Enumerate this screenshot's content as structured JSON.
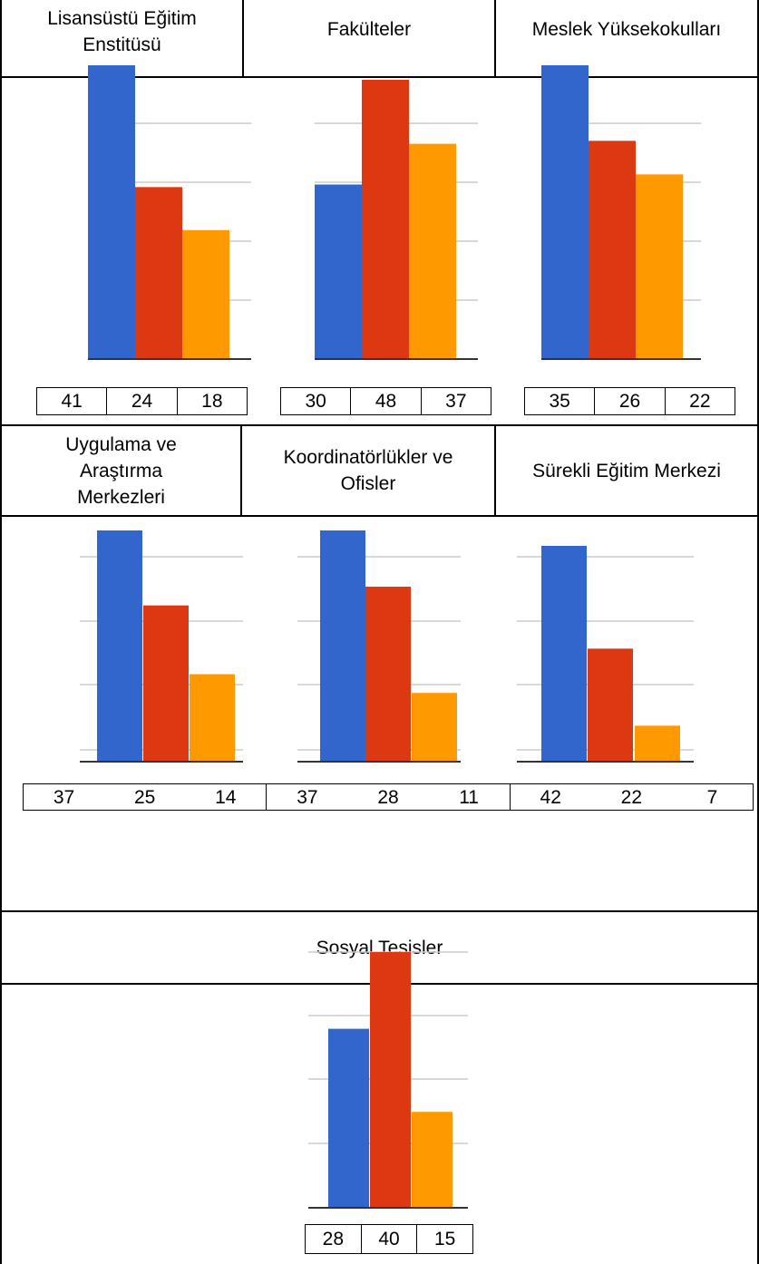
{
  "colors": {
    "series_1": "#3366CC",
    "series_2": "#DC3912",
    "series_3": "#FF9900",
    "gridline": "#CCCCCC",
    "baseline": "#333333"
  },
  "headers": {
    "row1": [
      "Lisansüstü Eğitim\nEnstitüsü",
      "Fakülteler",
      "Meslek Yüksekokulları"
    ],
    "row2": [
      "Uygulama ve\nAraştırma\nMerkezleri",
      "Koordinatörlükler ve\nOfisler",
      "Sürekli Eğitim Merkezi"
    ],
    "row3": [
      "Sosyal Tesisler"
    ]
  },
  "chart_data": [
    {
      "type": "bar",
      "category": "Lisansüstü Eğitim Enstitüsü",
      "values": [
        41,
        24,
        18
      ]
    },
    {
      "type": "bar",
      "category": "Fakülteler",
      "values": [
        30,
        48,
        37
      ]
    },
    {
      "type": "bar",
      "category": "Meslek Yüksekokulları",
      "values": [
        35,
        26,
        22
      ]
    },
    {
      "type": "bar",
      "category": "Uygulama ve Araştırma Merkezleri",
      "values": [
        37,
        25,
        14
      ]
    },
    {
      "type": "bar",
      "category": "Koordinatörlükler ve Ofisler",
      "values": [
        37,
        28,
        11
      ]
    },
    {
      "type": "bar",
      "category": "Sürekli Eğitim Merkezi",
      "values": [
        42,
        22,
        7
      ]
    },
    {
      "type": "bar",
      "category": "Sosyal Tesisler",
      "values": [
        28,
        40,
        15
      ]
    }
  ]
}
